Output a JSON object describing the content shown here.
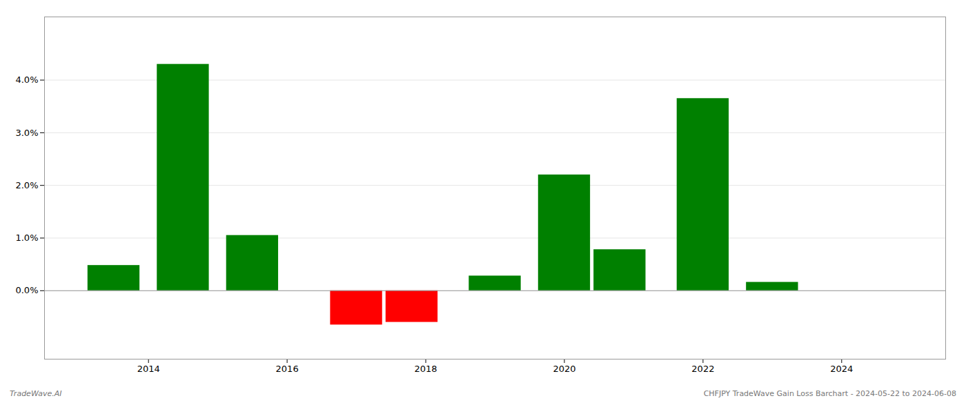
{
  "chart_data": {
    "type": "bar",
    "x": [
      2013.5,
      2014.5,
      2015.5,
      2017.0,
      2017.8,
      2019.0,
      2020.0,
      2020.8,
      2022.0,
      2023.0
    ],
    "values": [
      0.0048,
      0.043,
      0.0105,
      -0.0065,
      -0.006,
      0.0028,
      0.022,
      0.0078,
      0.0365,
      0.0016
    ],
    "colors": [
      "#008000",
      "#008000",
      "#008000",
      "#ff0000",
      "#ff0000",
      "#008000",
      "#008000",
      "#008000",
      "#008000",
      "#008000"
    ],
    "xlim": [
      2012.5,
      2025.5
    ],
    "xticks": [
      2014,
      2016,
      2018,
      2020,
      2022,
      2024
    ],
    "ylim": [
      -0.013,
      0.052
    ],
    "yticks": [
      {
        "value": 0.0,
        "label": "0.0%"
      },
      {
        "value": 0.01,
        "label": "1.0%"
      },
      {
        "value": 0.02,
        "label": "2.0%"
      },
      {
        "value": 0.03,
        "label": "3.0%"
      },
      {
        "value": 0.04,
        "label": "4.0%"
      }
    ],
    "grid": true,
    "footer_left": "TradeWave.AI",
    "footer_right": "CHFJPY TradeWave Gain Loss Barchart - 2024-05-22 to 2024-06-08"
  }
}
